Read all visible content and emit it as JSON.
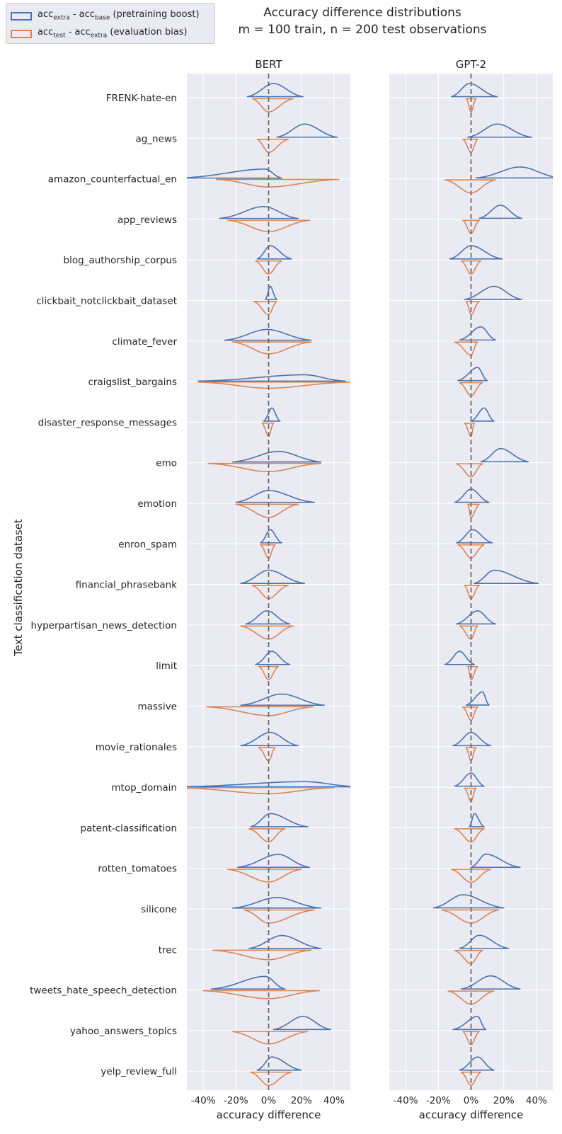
{
  "figure": {
    "title_line1": "Accuracy difference distributions",
    "title_line2": "m = 100 train, n = 200 test observations",
    "ylabel": "Text classification dataset",
    "legend": [
      {
        "main": "acc",
        "sub1": "extra",
        "mid": " - acc",
        "sub2": "base",
        "tail": " (pretraining boost)",
        "color": "#4c72b0"
      },
      {
        "main": "acc",
        "sub1": "test",
        "mid": " - acc",
        "sub2": "extra",
        "tail": " (evaluation bias)",
        "color": "#dd8452"
      }
    ]
  },
  "chart_data": {
    "type": "violin",
    "orientation": "horizontal split violins",
    "xlim": [
      -0.5,
      0.5
    ],
    "xticks": [
      -0.4,
      -0.2,
      0.0,
      0.2,
      0.4
    ],
    "xtick_labels": [
      "-40%",
      "-20%",
      "0%",
      "20%",
      "40%"
    ],
    "xlabel": "accuracy difference",
    "reference_line": 0,
    "colors": {
      "boost": "#4c72b0",
      "bias": "#dd8452"
    },
    "datasets": [
      "FRENK-hate-en",
      "ag_news",
      "amazon_counterfactual_en",
      "app_reviews",
      "blog_authorship_corpus",
      "clickbait_notclickbait_dataset",
      "climate_fever",
      "craigslist_bargains",
      "disaster_response_messages",
      "emo",
      "emotion",
      "enron_spam",
      "financial_phrasebank",
      "hyperpartisan_news_detection",
      "limit",
      "massive",
      "movie_rationales",
      "mtop_domain",
      "patent-classification",
      "rotten_tomatoes",
      "silicone",
      "trec",
      "tweets_hate_speech_detection",
      "yahoo_answers_topics",
      "yelp_review_full"
    ],
    "panels": [
      {
        "title": "BERT",
        "boost_range": [
          [
            -0.13,
            0.21
          ],
          [
            0.05,
            0.42
          ],
          [
            -0.55,
            0.08
          ],
          [
            -0.3,
            0.18
          ],
          [
            -0.07,
            0.14
          ],
          [
            -0.02,
            0.05
          ],
          [
            -0.27,
            0.26
          ],
          [
            -0.43,
            0.47
          ],
          [
            -0.03,
            0.07
          ],
          [
            -0.22,
            0.32
          ],
          [
            -0.2,
            0.28
          ],
          [
            -0.05,
            0.08
          ],
          [
            -0.17,
            0.22
          ],
          [
            -0.14,
            0.13
          ],
          [
            -0.08,
            0.13
          ],
          [
            -0.17,
            0.34
          ],
          [
            -0.17,
            0.18
          ],
          [
            -0.55,
            0.55
          ],
          [
            -0.11,
            0.24
          ],
          [
            -0.19,
            0.25
          ],
          [
            -0.22,
            0.32
          ],
          [
            -0.12,
            0.32
          ],
          [
            -0.35,
            0.1
          ],
          [
            0.03,
            0.38
          ],
          [
            -0.07,
            0.2
          ]
        ],
        "boost_mode": [
          0.03,
          0.22,
          -0.02,
          -0.03,
          0.01,
          0.01,
          -0.01,
          0.22,
          0.02,
          0.06,
          0.0,
          0.01,
          0.0,
          -0.01,
          0.02,
          0.08,
          0.01,
          0.22,
          0.01,
          0.06,
          0.05,
          0.08,
          -0.02,
          0.21,
          0.02
        ],
        "bias_range": [
          [
            -0.1,
            0.15
          ],
          [
            -0.07,
            0.12
          ],
          [
            -0.32,
            0.43
          ],
          [
            -0.25,
            0.25
          ],
          [
            -0.08,
            0.08
          ],
          [
            -0.09,
            0.05
          ],
          [
            -0.22,
            0.26
          ],
          [
            -0.43,
            0.5
          ],
          [
            -0.04,
            0.03
          ],
          [
            -0.37,
            0.32
          ],
          [
            -0.2,
            0.18
          ],
          [
            -0.05,
            0.04
          ],
          [
            -0.1,
            0.12
          ],
          [
            -0.17,
            0.15
          ],
          [
            -0.06,
            0.06
          ],
          [
            -0.38,
            0.27
          ],
          [
            -0.06,
            0.04
          ],
          [
            -0.55,
            0.4
          ],
          [
            -0.12,
            0.1
          ],
          [
            -0.25,
            0.2
          ],
          [
            -0.15,
            0.28
          ],
          [
            -0.34,
            0.26
          ],
          [
            -0.4,
            0.31
          ],
          [
            -0.22,
            0.24
          ],
          [
            -0.11,
            0.14
          ]
        ],
        "bias_mode": [
          0.0,
          0.0,
          0.0,
          0.0,
          0.0,
          0.0,
          0.0,
          0.0,
          0.0,
          0.0,
          0.0,
          0.0,
          0.0,
          0.0,
          0.0,
          0.0,
          0.0,
          0.0,
          0.0,
          0.0,
          0.0,
          0.0,
          0.0,
          0.0,
          0.0
        ]
      },
      {
        "title": "GPT-2",
        "boost_range": [
          [
            -0.12,
            0.16
          ],
          [
            -0.02,
            0.37
          ],
          [
            0.03,
            0.55
          ],
          [
            0.05,
            0.31
          ],
          [
            -0.13,
            0.19
          ],
          [
            -0.04,
            0.31
          ],
          [
            -0.07,
            0.15
          ],
          [
            -0.08,
            0.1
          ],
          [
            0.0,
            0.14
          ],
          [
            0.06,
            0.35
          ],
          [
            -0.1,
            0.11
          ],
          [
            -0.09,
            0.13
          ],
          [
            0.02,
            0.41
          ],
          [
            -0.09,
            0.15
          ],
          [
            -0.16,
            0.02
          ],
          [
            -0.03,
            0.11
          ],
          [
            -0.11,
            0.12
          ],
          [
            -0.1,
            0.08
          ],
          [
            -0.01,
            0.08
          ],
          [
            0.0,
            0.3
          ],
          [
            -0.23,
            0.2
          ],
          [
            -0.07,
            0.23
          ],
          [
            -0.06,
            0.3
          ],
          [
            -0.11,
            0.09
          ],
          [
            -0.07,
            0.14
          ]
        ],
        "boost_mode": [
          -0.01,
          0.16,
          0.3,
          0.18,
          0.0,
          0.14,
          0.06,
          0.04,
          0.08,
          0.18,
          0.0,
          0.01,
          0.14,
          0.04,
          -0.07,
          0.07,
          0.0,
          0.0,
          0.02,
          0.09,
          -0.05,
          0.05,
          0.12,
          0.04,
          0.04
        ],
        "bias_range": [
          [
            -0.03,
            0.03
          ],
          [
            -0.05,
            0.04
          ],
          [
            -0.16,
            0.15
          ],
          [
            -0.05,
            0.05
          ],
          [
            -0.06,
            0.06
          ],
          [
            -0.03,
            0.05
          ],
          [
            -0.1,
            0.04
          ],
          [
            -0.07,
            0.07
          ],
          [
            -0.04,
            0.02
          ],
          [
            -0.09,
            0.07
          ],
          [
            -0.02,
            0.05
          ],
          [
            -0.08,
            0.08
          ],
          [
            -0.04,
            0.05
          ],
          [
            -0.07,
            0.04
          ],
          [
            -0.02,
            0.04
          ],
          [
            -0.05,
            0.04
          ],
          [
            -0.03,
            0.03
          ],
          [
            -0.04,
            0.03
          ],
          [
            -0.1,
            0.08
          ],
          [
            -0.12,
            0.12
          ],
          [
            -0.18,
            0.17
          ],
          [
            -0.1,
            0.07
          ],
          [
            -0.14,
            0.14
          ],
          [
            -0.05,
            0.05
          ],
          [
            -0.06,
            0.06
          ]
        ],
        "bias_mode": [
          0.0,
          0.0,
          0.0,
          0.0,
          0.0,
          0.0,
          0.0,
          0.0,
          0.0,
          0.0,
          0.0,
          0.0,
          0.0,
          0.0,
          0.0,
          0.0,
          0.0,
          0.0,
          0.0,
          0.0,
          0.0,
          0.0,
          0.0,
          0.0,
          0.0
        ]
      }
    ]
  }
}
